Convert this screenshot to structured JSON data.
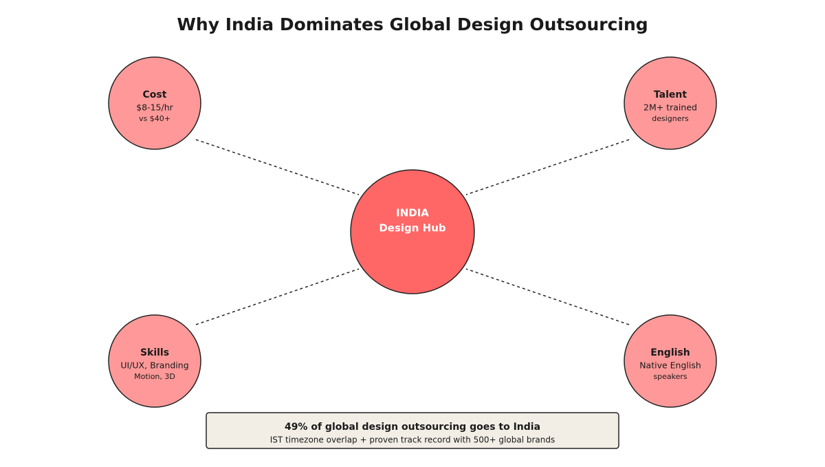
{
  "title": "Why India Dominates Global Design Outsourcing",
  "center": {
    "line1": "INDIA",
    "line2": "Design Hub"
  },
  "nodes": [
    {
      "label": "Cost",
      "line1": "$8-15/hr",
      "line2": "vs $40+"
    },
    {
      "label": "Talent",
      "line1": "2M+ trained",
      "line2": "designers"
    },
    {
      "label": "Skills",
      "line1": "UI/UX, Branding",
      "line2": "Motion, 3D"
    },
    {
      "label": "English",
      "line1": "Native English",
      "line2": "speakers"
    }
  ],
  "footer": {
    "headline": "49% of global design outsourcing goes to India",
    "detail": "IST timezone overlap + proven track record with 500+ global brands"
  }
}
